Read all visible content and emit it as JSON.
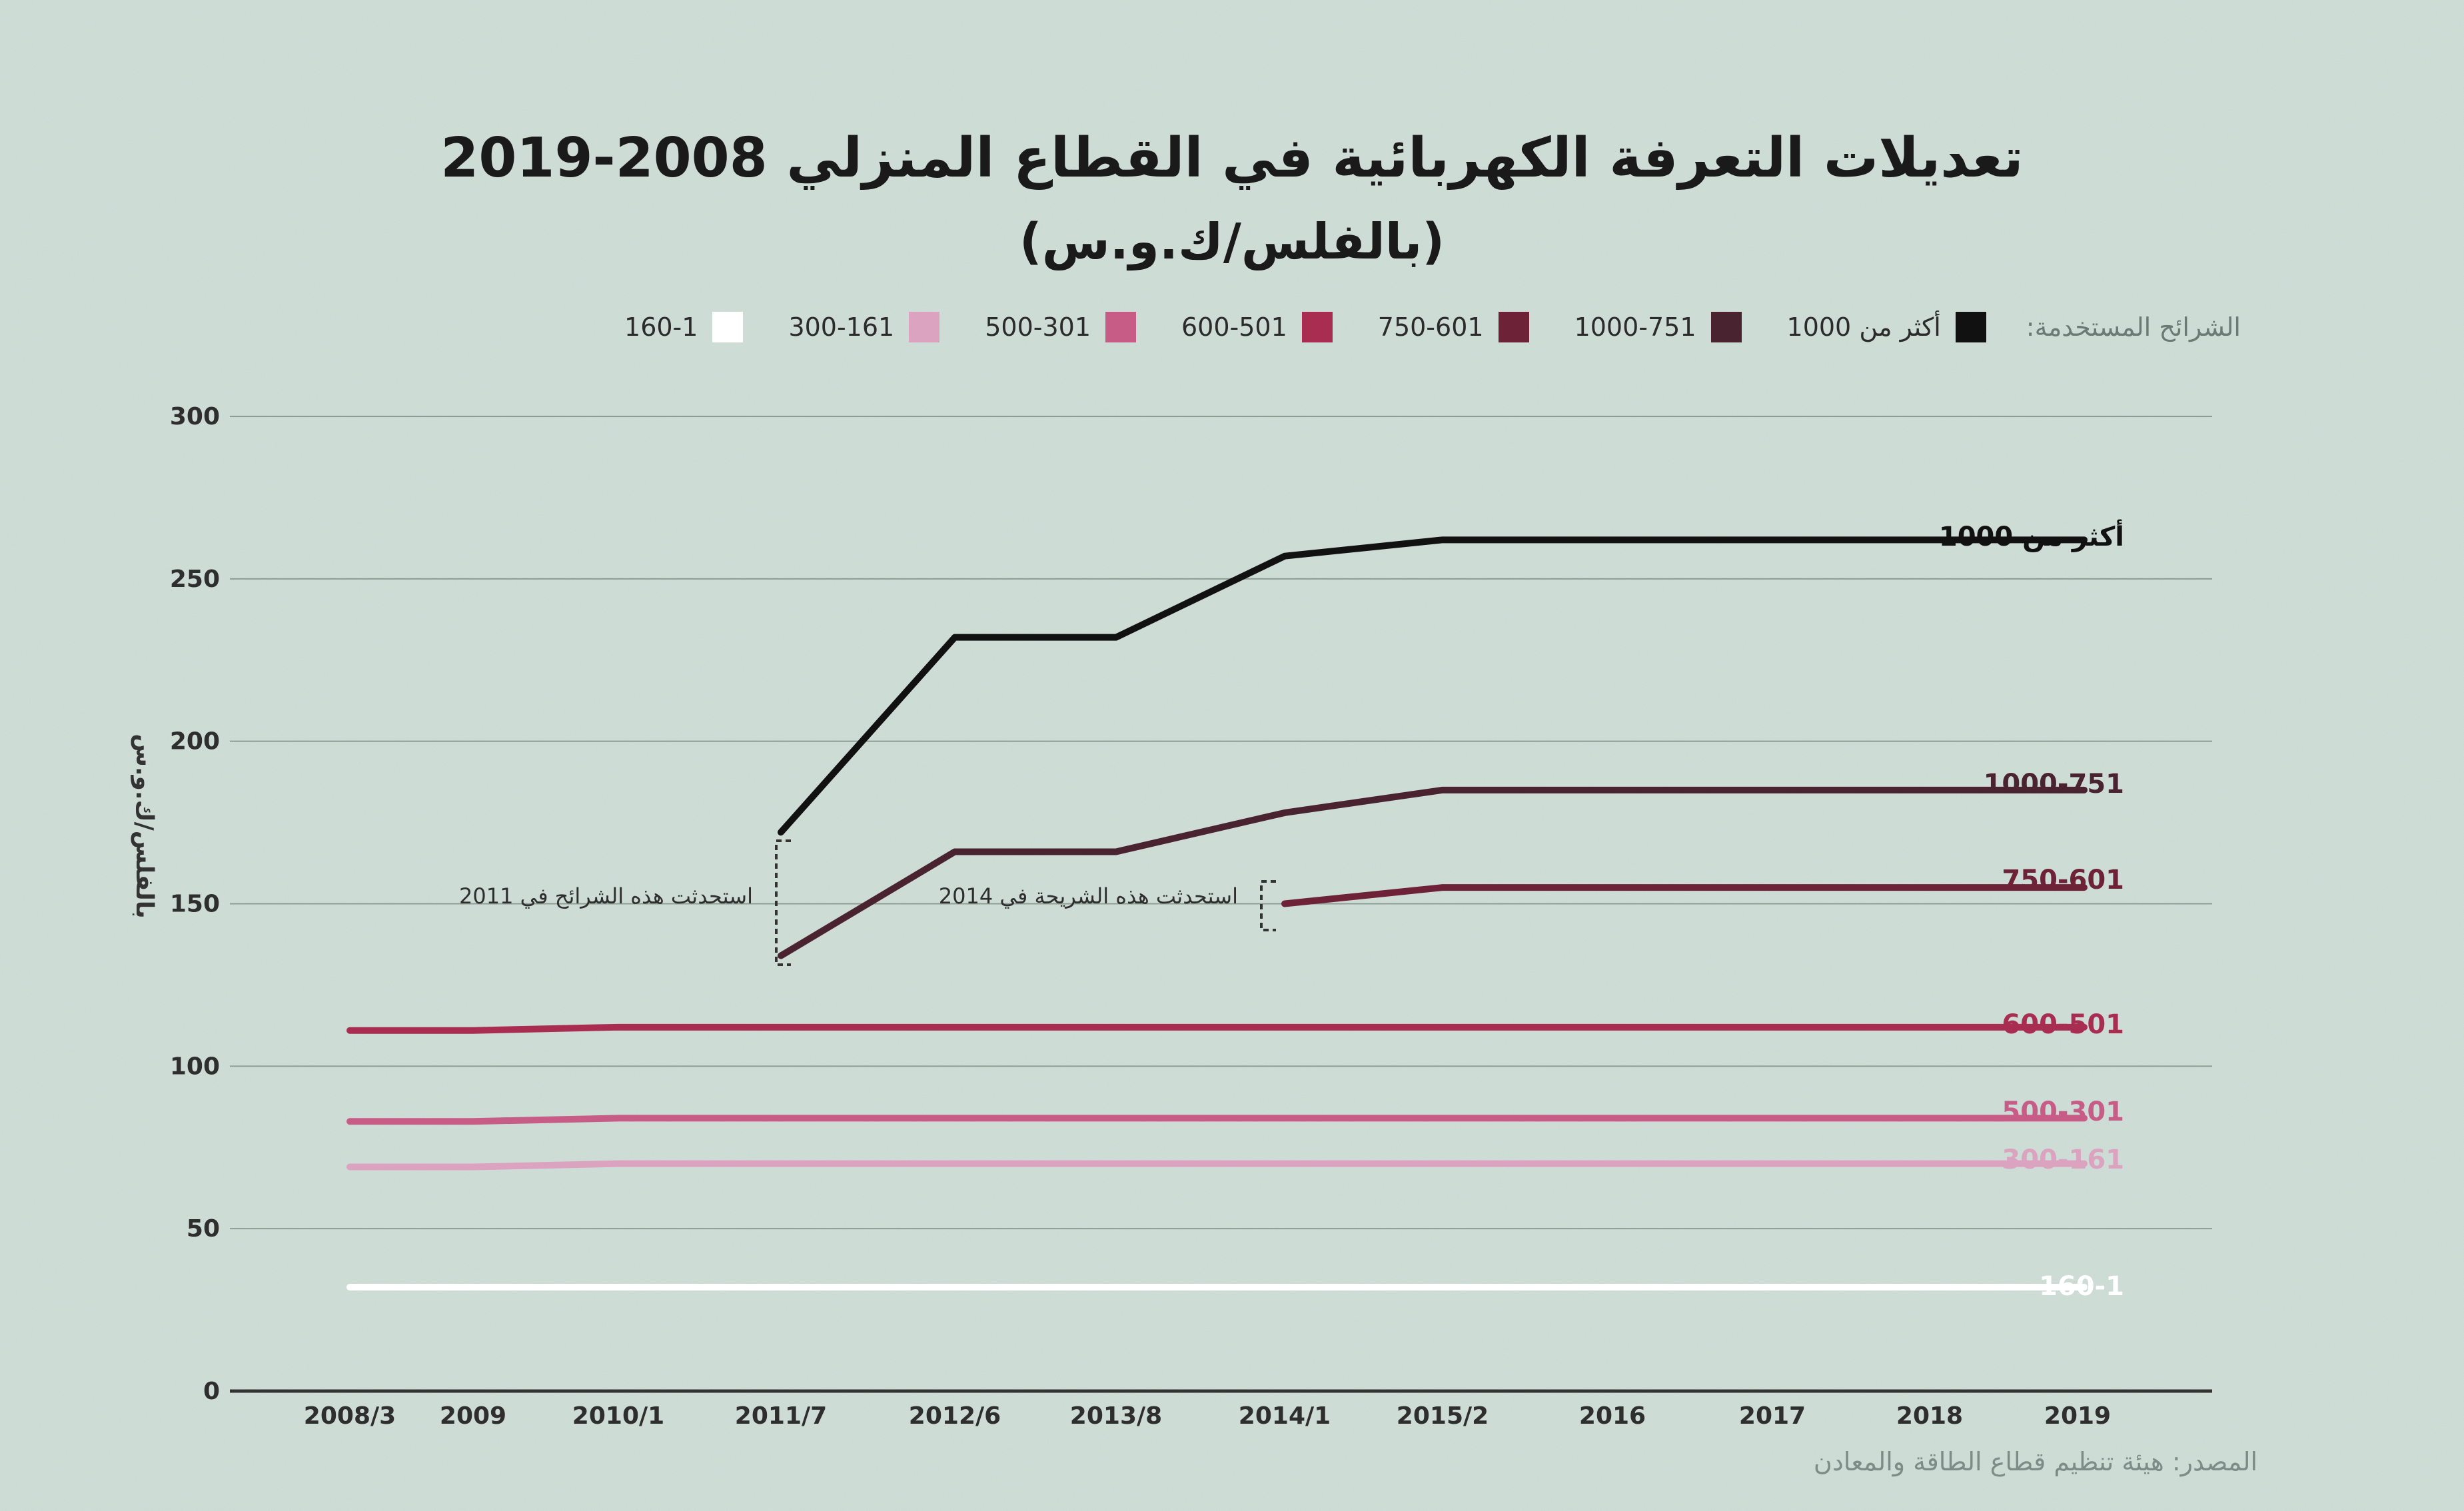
{
  "title_line1": "تعديلات التعرفة الكهربائية في القطاع المنزلي 2008-2019",
  "title_line2": "(بالفلس/ك.و.س)",
  "legend_title": "الشرائح المستخدمة:",
  "source": "المصدر: هيئة تنظيم قطاع الطاقة والمعادن",
  "chart_data": {
    "type": "line",
    "title": "تعديلات التعرفة الكهربائية في القطاع المنزلي 2008-2019 (بالفلس/ك.و.س)",
    "ylabel": "بالفلس/ك.و.س",
    "xlabel": "",
    "ylim": [
      0,
      300
    ],
    "yticks": [
      "0",
      "50",
      "100",
      "150",
      "200",
      "250",
      "300"
    ],
    "categories": [
      "2008/3",
      "2009",
      "2010/1",
      "2011/7",
      "2012/6",
      "2013/8",
      "2014/1",
      "2015/2",
      "2016",
      "2017",
      "2018",
      "2019"
    ],
    "grid": true,
    "legend_position": "top",
    "series": [
      {
        "name": "أكثر من 1000",
        "color": "#111111",
        "values": [
          null,
          null,
          null,
          172,
          232,
          232,
          257,
          262,
          262,
          262,
          262,
          262
        ]
      },
      {
        "name": "1000-751",
        "color": "#4a2330",
        "values": [
          null,
          null,
          null,
          134,
          166,
          166,
          178,
          185,
          185,
          185,
          185,
          185
        ]
      },
      {
        "name": "750-601",
        "color": "#6d2238",
        "values": [
          null,
          null,
          null,
          null,
          null,
          null,
          150,
          155,
          155,
          155,
          155,
          155
        ]
      },
      {
        "name": "600-501",
        "color": "#a82d50",
        "values": [
          111,
          111,
          112,
          112,
          112,
          112,
          112,
          112,
          112,
          112,
          112,
          112
        ]
      },
      {
        "name": "500-301",
        "color": "#c75d87",
        "values": [
          83,
          83,
          84,
          84,
          84,
          84,
          84,
          84,
          84,
          84,
          84,
          84
        ]
      },
      {
        "name": "300-161",
        "color": "#dba3bf",
        "values": [
          69,
          69,
          70,
          70,
          70,
          70,
          70,
          70,
          70,
          70,
          70,
          70
        ]
      },
      {
        "name": "160-1",
        "color": "#ffffff",
        "values": [
          32,
          32,
          32,
          32,
          32,
          32,
          32,
          32,
          32,
          32,
          32,
          32
        ]
      }
    ],
    "annotations": [
      {
        "text": "استحدثت هذه الشرائح في 2011",
        "at": "2011/7"
      },
      {
        "text": "استحدثت هذه الشريحة في 2014",
        "at": "2014/1"
      }
    ]
  }
}
